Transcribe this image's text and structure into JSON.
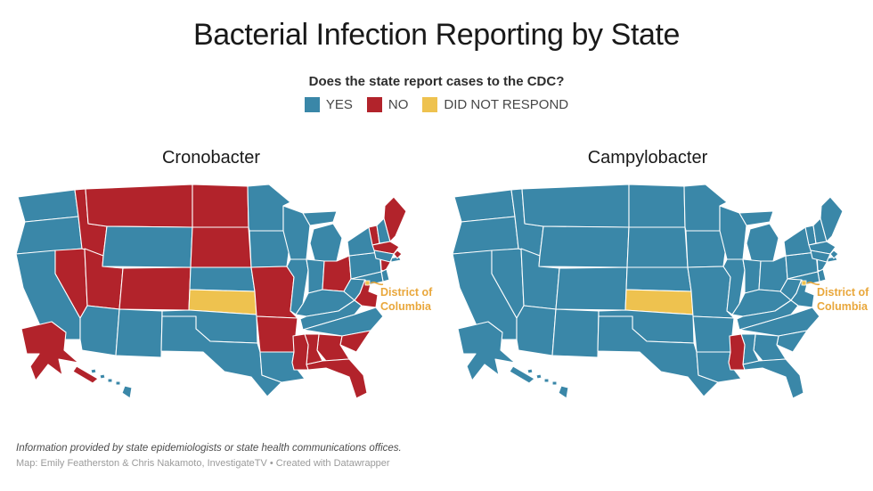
{
  "title": "Bacterial Infection Reporting by State",
  "legend": {
    "question": "Does the state report cases to the CDC?",
    "items": [
      {
        "key": "yes",
        "label": "YES"
      },
      {
        "key": "no",
        "label": "NO"
      },
      {
        "key": "dnr",
        "label": "DID NOT RESPOND"
      }
    ]
  },
  "colors": {
    "yes": "#3a87a8",
    "no": "#b2232b",
    "dnr": "#eec24f",
    "dc_label": "#e9a73b",
    "state_border": "#ffffff"
  },
  "maps": [
    {
      "title": "Cronobacter",
      "dc_label_lines": [
        "District of",
        "Columbia"
      ],
      "dc_status": "dnr",
      "states": {
        "WA": "yes",
        "OR": "yes",
        "CA": "yes",
        "NV": "no",
        "ID": "no",
        "MT": "no",
        "WY": "yes",
        "UT": "no",
        "CO": "no",
        "AZ": "yes",
        "NM": "yes",
        "ND": "no",
        "SD": "no",
        "NE": "yes",
        "KS": "dnr",
        "OK": "yes",
        "TX": "yes",
        "MN": "yes",
        "IA": "yes",
        "MO": "no",
        "AR": "no",
        "LA": "yes",
        "WI": "yes",
        "IL": "yes",
        "MI": "yes",
        "IN": "yes",
        "OH": "no",
        "KY": "yes",
        "TN": "yes",
        "WV": "yes",
        "VA": "no",
        "NC": "yes",
        "SC": "no",
        "GA": "no",
        "AL": "no",
        "MS": "no",
        "FL": "no",
        "PA": "yes",
        "NY": "yes",
        "NJ": "no",
        "DE": "yes",
        "MD": "yes",
        "VT": "no",
        "NH": "yes",
        "ME": "no",
        "MA": "no",
        "RI": "no",
        "CT": "yes",
        "AK": "no",
        "HI": "yes",
        "DC": "dnr"
      }
    },
    {
      "title": "Campylobacter",
      "dc_label_lines": [
        "District of",
        "Columbia"
      ],
      "dc_status": "dnr",
      "states": {
        "WA": "yes",
        "OR": "yes",
        "CA": "yes",
        "NV": "yes",
        "ID": "yes",
        "MT": "yes",
        "WY": "yes",
        "UT": "yes",
        "CO": "yes",
        "AZ": "yes",
        "NM": "yes",
        "ND": "yes",
        "SD": "yes",
        "NE": "yes",
        "KS": "dnr",
        "OK": "yes",
        "TX": "yes",
        "MN": "yes",
        "IA": "yes",
        "MO": "yes",
        "AR": "yes",
        "LA": "yes",
        "WI": "yes",
        "IL": "yes",
        "MI": "yes",
        "IN": "yes",
        "OH": "yes",
        "KY": "yes",
        "TN": "yes",
        "WV": "yes",
        "VA": "yes",
        "NC": "yes",
        "SC": "yes",
        "GA": "yes",
        "AL": "yes",
        "MS": "no",
        "FL": "yes",
        "PA": "yes",
        "NY": "yes",
        "NJ": "yes",
        "DE": "yes",
        "MD": "yes",
        "VT": "yes",
        "NH": "yes",
        "ME": "yes",
        "MA": "yes",
        "RI": "yes",
        "CT": "yes",
        "AK": "yes",
        "HI": "yes",
        "DC": "dnr"
      }
    }
  ],
  "footer": {
    "line1": "Information provided by state epidemiologists or state health communications offices.",
    "line2": "Map: Emily Featherston & Chris Nakamoto, InvestigateTV • Created with Datawrapper"
  }
}
